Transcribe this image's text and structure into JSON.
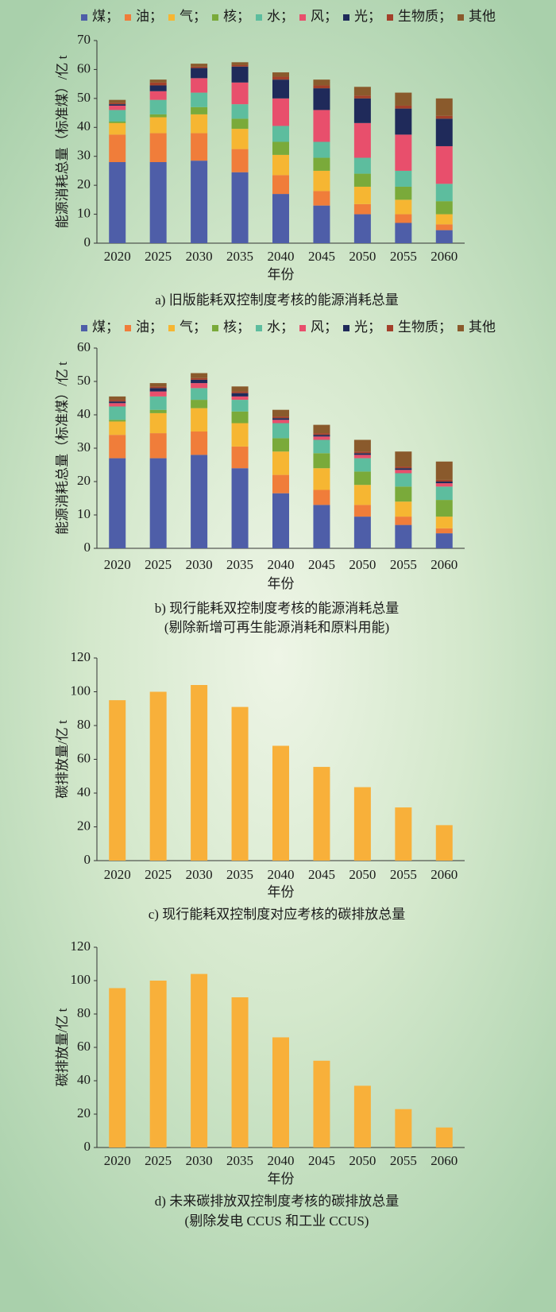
{
  "chart_data": [
    {
      "type": "stacked_bar",
      "caption": [
        "a) 旧版能耗双控制度考核的能源消耗总量"
      ],
      "x_label": "年份",
      "y_label": "能源消耗总量（标准煤）/亿 t",
      "categories": [
        "2020",
        "2025",
        "2030",
        "2035",
        "2040",
        "2045",
        "2050",
        "2055",
        "2060"
      ],
      "ylim": [
        0,
        70
      ],
      "yticks": [
        0,
        10,
        20,
        30,
        40,
        50,
        60,
        70
      ],
      "series": [
        {
          "name": "煤；",
          "color": "#4e5ea8",
          "values": [
            28,
            28,
            28.5,
            24.5,
            17,
            13,
            10,
            7,
            4.5
          ]
        },
        {
          "name": "油；",
          "color": "#f07d3a",
          "values": [
            9.5,
            10,
            9.5,
            8,
            6.5,
            5,
            3.5,
            3,
            2
          ]
        },
        {
          "name": "气；",
          "color": "#f6b632",
          "values": [
            4,
            5.5,
            6.5,
            7,
            7,
            7,
            6,
            5,
            3.5
          ]
        },
        {
          "name": "核；",
          "color": "#7aaa3a",
          "values": [
            0.5,
            1,
            2.5,
            3.5,
            4.5,
            4.5,
            4.5,
            4.5,
            4.5
          ]
        },
        {
          "name": "水；",
          "color": "#5dbd9e",
          "values": [
            4,
            5,
            5,
            5,
            5.5,
            5.5,
            5.5,
            5.5,
            6
          ]
        },
        {
          "name": "风；",
          "color": "#e84f6c",
          "values": [
            1.5,
            3,
            5,
            7.5,
            9.5,
            11,
            12,
            12.5,
            13
          ]
        },
        {
          "name": "光；",
          "color": "#1f2a5a",
          "values": [
            0.5,
            2,
            3.5,
            5.5,
            6.5,
            7.5,
            8.5,
            9,
            9.5
          ]
        },
        {
          "name": "生物质；",
          "color": "#a3402a",
          "values": [
            0.5,
            1,
            0.5,
            0.5,
            1,
            1,
            1,
            1,
            1
          ]
        },
        {
          "name": "其他",
          "color": "#8a5a2c",
          "values": [
            1,
            1,
            1,
            1,
            1.5,
            2,
            3,
            4.5,
            6
          ]
        }
      ]
    },
    {
      "type": "stacked_bar",
      "caption": [
        "b) 现行能耗双控制度考核的能源消耗总量",
        "(剔除新增可再生能源消耗和原料用能)"
      ],
      "x_label": "年份",
      "y_label": "能源消耗总量（标准煤）/亿 t",
      "categories": [
        "2020",
        "2025",
        "2030",
        "2035",
        "2040",
        "2045",
        "2050",
        "2055",
        "2060"
      ],
      "ylim": [
        0,
        60
      ],
      "yticks": [
        0,
        10,
        20,
        30,
        40,
        50,
        60
      ],
      "series": [
        {
          "name": "煤；",
          "color": "#4e5ea8",
          "values": [
            27,
            27,
            28,
            24,
            16.5,
            13,
            9.5,
            7,
            4.5
          ]
        },
        {
          "name": "油；",
          "color": "#f07d3a",
          "values": [
            7,
            7.5,
            7,
            6.5,
            5.5,
            4.5,
            3.5,
            2.5,
            1.5
          ]
        },
        {
          "name": "气；",
          "color": "#f6b632",
          "values": [
            4,
            6,
            7,
            7,
            7,
            6.5,
            6,
            4.5,
            3.5
          ]
        },
        {
          "name": "核；",
          "color": "#7aaa3a",
          "values": [
            0.5,
            1,
            2.5,
            3.5,
            4,
            4.5,
            4,
            4.5,
            5
          ]
        },
        {
          "name": "水；",
          "color": "#5dbd9e",
          "values": [
            4,
            4,
            3.5,
            3.5,
            4.5,
            4,
            4,
            4,
            4
          ]
        },
        {
          "name": "风；",
          "color": "#e84f6c",
          "values": [
            1,
            1.5,
            1.5,
            1,
            1,
            1,
            1,
            1,
            1
          ]
        },
        {
          "name": "光；",
          "color": "#1f2a5a",
          "values": [
            0.5,
            1,
            1,
            1,
            0.5,
            0.5,
            0.5,
            0.5,
            0.5
          ]
        },
        {
          "name": "生物质；",
          "color": "#a3402a",
          "values": [
            0.5,
            0.5,
            0.5,
            0.5,
            0.5,
            0.5,
            0.5,
            0.5,
            0.5
          ]
        },
        {
          "name": "其他",
          "color": "#8a5a2c",
          "values": [
            1,
            1,
            1.5,
            1.5,
            2,
            2.5,
            3.5,
            4.5,
            5.5
          ]
        }
      ]
    },
    {
      "type": "bar",
      "caption": [
        "c) 现行能耗双控制度对应考核的碳排放总量"
      ],
      "x_label": "年份",
      "y_label": "碳排放量/亿 t",
      "categories": [
        "2020",
        "2025",
        "2030",
        "2035",
        "2040",
        "2045",
        "2050",
        "2055",
        "2060"
      ],
      "ylim": [
        0,
        120
      ],
      "yticks": [
        0,
        20,
        40,
        60,
        80,
        100,
        120
      ],
      "color": "#f8b03a",
      "values": [
        95,
        100,
        104,
        91,
        68,
        55.5,
        43.5,
        31.5,
        21
      ]
    },
    {
      "type": "bar",
      "caption": [
        "d) 未来碳排放双控制度考核的碳排放总量",
        "(剔除发电 CCUS 和工业 CCUS)"
      ],
      "x_label": "年份",
      "y_label": "碳排放量/亿 t",
      "categories": [
        "2020",
        "2025",
        "2030",
        "2035",
        "2040",
        "2045",
        "2050",
        "2055",
        "2060"
      ],
      "ylim": [
        0,
        120
      ],
      "yticks": [
        0,
        20,
        40,
        60,
        80,
        100,
        120
      ],
      "color": "#f8b03a",
      "values": [
        95.5,
        100,
        104,
        90,
        66,
        52,
        37,
        23,
        12
      ]
    }
  ]
}
